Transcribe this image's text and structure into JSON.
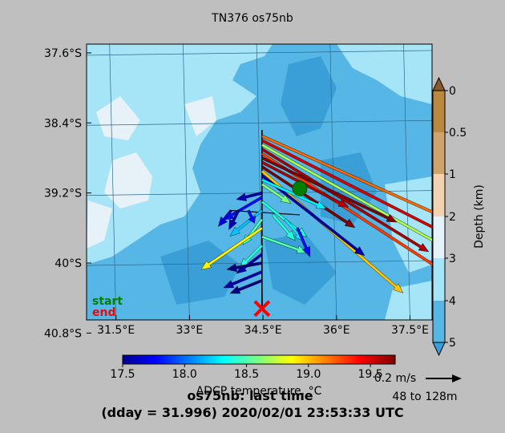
{
  "title": "TN376 os75nb",
  "footer": {
    "line1": "os75nb: last time",
    "line2": "(dday = 31.996) 2020/02/01 23:53:33 UTC"
  },
  "map": {
    "lat_ticks": [
      "37.6°S",
      "38.4°S",
      "39.2°S",
      "40°S",
      "40.8°S"
    ],
    "lon_ticks": [
      "31.5°E",
      "33°E",
      "34.5°E",
      "36°E",
      "37.5°E"
    ],
    "legend_start": "start",
    "legend_end": "end",
    "start_color": "#008000",
    "end_color": "#ff0000"
  },
  "depth_bar": {
    "label": "Depth (km)",
    "ticks": [
      "0",
      "0.5",
      "1",
      "2",
      "3",
      "4",
      "5"
    ],
    "colors": [
      "#b98a3e",
      "#cfa46a",
      "#f2d2b0",
      "#e6f2f7",
      "#a6e4f7",
      "#56b7e6"
    ]
  },
  "temp_bar": {
    "label": "ADCP temperature, °C",
    "ticks": [
      "17.5",
      "18.0",
      "18.5",
      "19.0",
      "19.5"
    ],
    "range": [
      17.5,
      19.7
    ]
  },
  "scale": {
    "label": "0.2 m/s",
    "depth_range": "48 to 128m"
  },
  "chart_data": {
    "type": "quiver",
    "title": "TN376 os75nb",
    "x_axis": {
      "type": "longitude",
      "range": [
        30.9,
        37.95
      ],
      "ticks": [
        31.5,
        33.0,
        34.5,
        36.0,
        37.5
      ]
    },
    "y_axis": {
      "type": "latitude",
      "range": [
        -40.65,
        -37.5
      ],
      "ticks": [
        -37.6,
        -38.4,
        -39.2,
        -40.0,
        -40.8
      ]
    },
    "start": {
      "lon": 35.25,
      "lat": -39.15
    },
    "end": {
      "lon": 34.48,
      "lat": -40.52
    },
    "track": [
      {
        "lon": 34.48,
        "lat": -38.48
      },
      {
        "lon": 34.48,
        "lat": -39.4
      },
      {
        "lon": 34.48,
        "lat": -40.52
      }
    ],
    "vectors": [
      {
        "lon": 34.48,
        "lat": -38.55,
        "u": 3.25,
        "v": -1.45,
        "temp": 19.2
      },
      {
        "lon": 34.48,
        "lat": -38.6,
        "u": 3.05,
        "v": -1.55,
        "temp": 19.5
      },
      {
        "lon": 34.48,
        "lat": -38.65,
        "u": 2.95,
        "v": -1.65,
        "temp": 18.7
      },
      {
        "lon": 34.48,
        "lat": -38.7,
        "u": 2.6,
        "v": -1.6,
        "temp": 19.6
      },
      {
        "lon": 34.48,
        "lat": -38.75,
        "u": 2.85,
        "v": -1.85,
        "temp": 19.3
      },
      {
        "lon": 34.48,
        "lat": -38.8,
        "u": 2.1,
        "v": -1.0,
        "temp": 19.7
      },
      {
        "lon": 34.48,
        "lat": -38.85,
        "u": 1.35,
        "v": -0.7,
        "temp": 19.6
      },
      {
        "lon": 34.48,
        "lat": -38.9,
        "u": 1.45,
        "v": -0.95,
        "temp": 19.7
      },
      {
        "lon": 34.48,
        "lat": -38.95,
        "u": 2.2,
        "v": -1.9,
        "temp": 19.0
      },
      {
        "lon": 34.48,
        "lat": -39.0,
        "u": 1.6,
        "v": -1.25,
        "temp": 17.6
      },
      {
        "lon": 34.48,
        "lat": -39.05,
        "u": 1.0,
        "v": -0.45,
        "temp": 18.3
      },
      {
        "lon": 34.48,
        "lat": -39.1,
        "u": 0.45,
        "v": -0.3,
        "temp": 18.6
      },
      {
        "lon": 34.48,
        "lat": -39.2,
        "u": -0.4,
        "v": -0.1,
        "temp": 17.6
      },
      {
        "lon": 34.48,
        "lat": -39.25,
        "u": -0.6,
        "v": -0.35,
        "temp": 17.8
      },
      {
        "lon": 34.48,
        "lat": -39.3,
        "u": 0.7,
        "v": -0.55,
        "temp": 18.4
      },
      {
        "lon": 34.48,
        "lat": -39.4,
        "u": -0.5,
        "v": -0.4,
        "temp": 18.2
      },
      {
        "lon": 34.48,
        "lat": -39.5,
        "u": -0.3,
        "v": -0.4,
        "temp": 18.5
      },
      {
        "lon": 34.48,
        "lat": -39.6,
        "u": -0.95,
        "v": -0.65,
        "temp": 18.9
      },
      {
        "lon": 34.48,
        "lat": -39.7,
        "u": 0.7,
        "v": -0.25,
        "temp": 18.5
      },
      {
        "lon": 34.48,
        "lat": -39.8,
        "u": -0.35,
        "v": -0.35,
        "temp": 18.4
      },
      {
        "lon": 34.48,
        "lat": -39.9,
        "u": -0.4,
        "v": -0.3,
        "temp": 17.6
      },
      {
        "lon": 34.48,
        "lat": -40.0,
        "u": -0.55,
        "v": -0.1,
        "temp": 17.5
      },
      {
        "lon": 34.48,
        "lat": -40.1,
        "u": -0.6,
        "v": -0.25,
        "temp": 17.6
      },
      {
        "lon": 34.48,
        "lat": -40.2,
        "u": -0.5,
        "v": -0.2,
        "temp": 17.5
      },
      {
        "lon": 33.85,
        "lat": -39.4,
        "u": -0.2,
        "v": -0.25,
        "temp": 17.7
      },
      {
        "lon": 34.0,
        "lat": -39.4,
        "u": -0.15,
        "v": -0.3,
        "temp": 17.6
      },
      {
        "lon": 34.2,
        "lat": -39.4,
        "u": 0.1,
        "v": -0.2,
        "temp": 17.8
      },
      {
        "lon": 34.7,
        "lat": -39.45,
        "u": 0.35,
        "v": -0.4,
        "temp": 18.4
      },
      {
        "lon": 34.95,
        "lat": -39.5,
        "u": 0.3,
        "v": -0.35,
        "temp": 18.3
      },
      {
        "lon": 35.2,
        "lat": -39.6,
        "u": 0.2,
        "v": -0.45,
        "temp": 17.8
      }
    ]
  }
}
